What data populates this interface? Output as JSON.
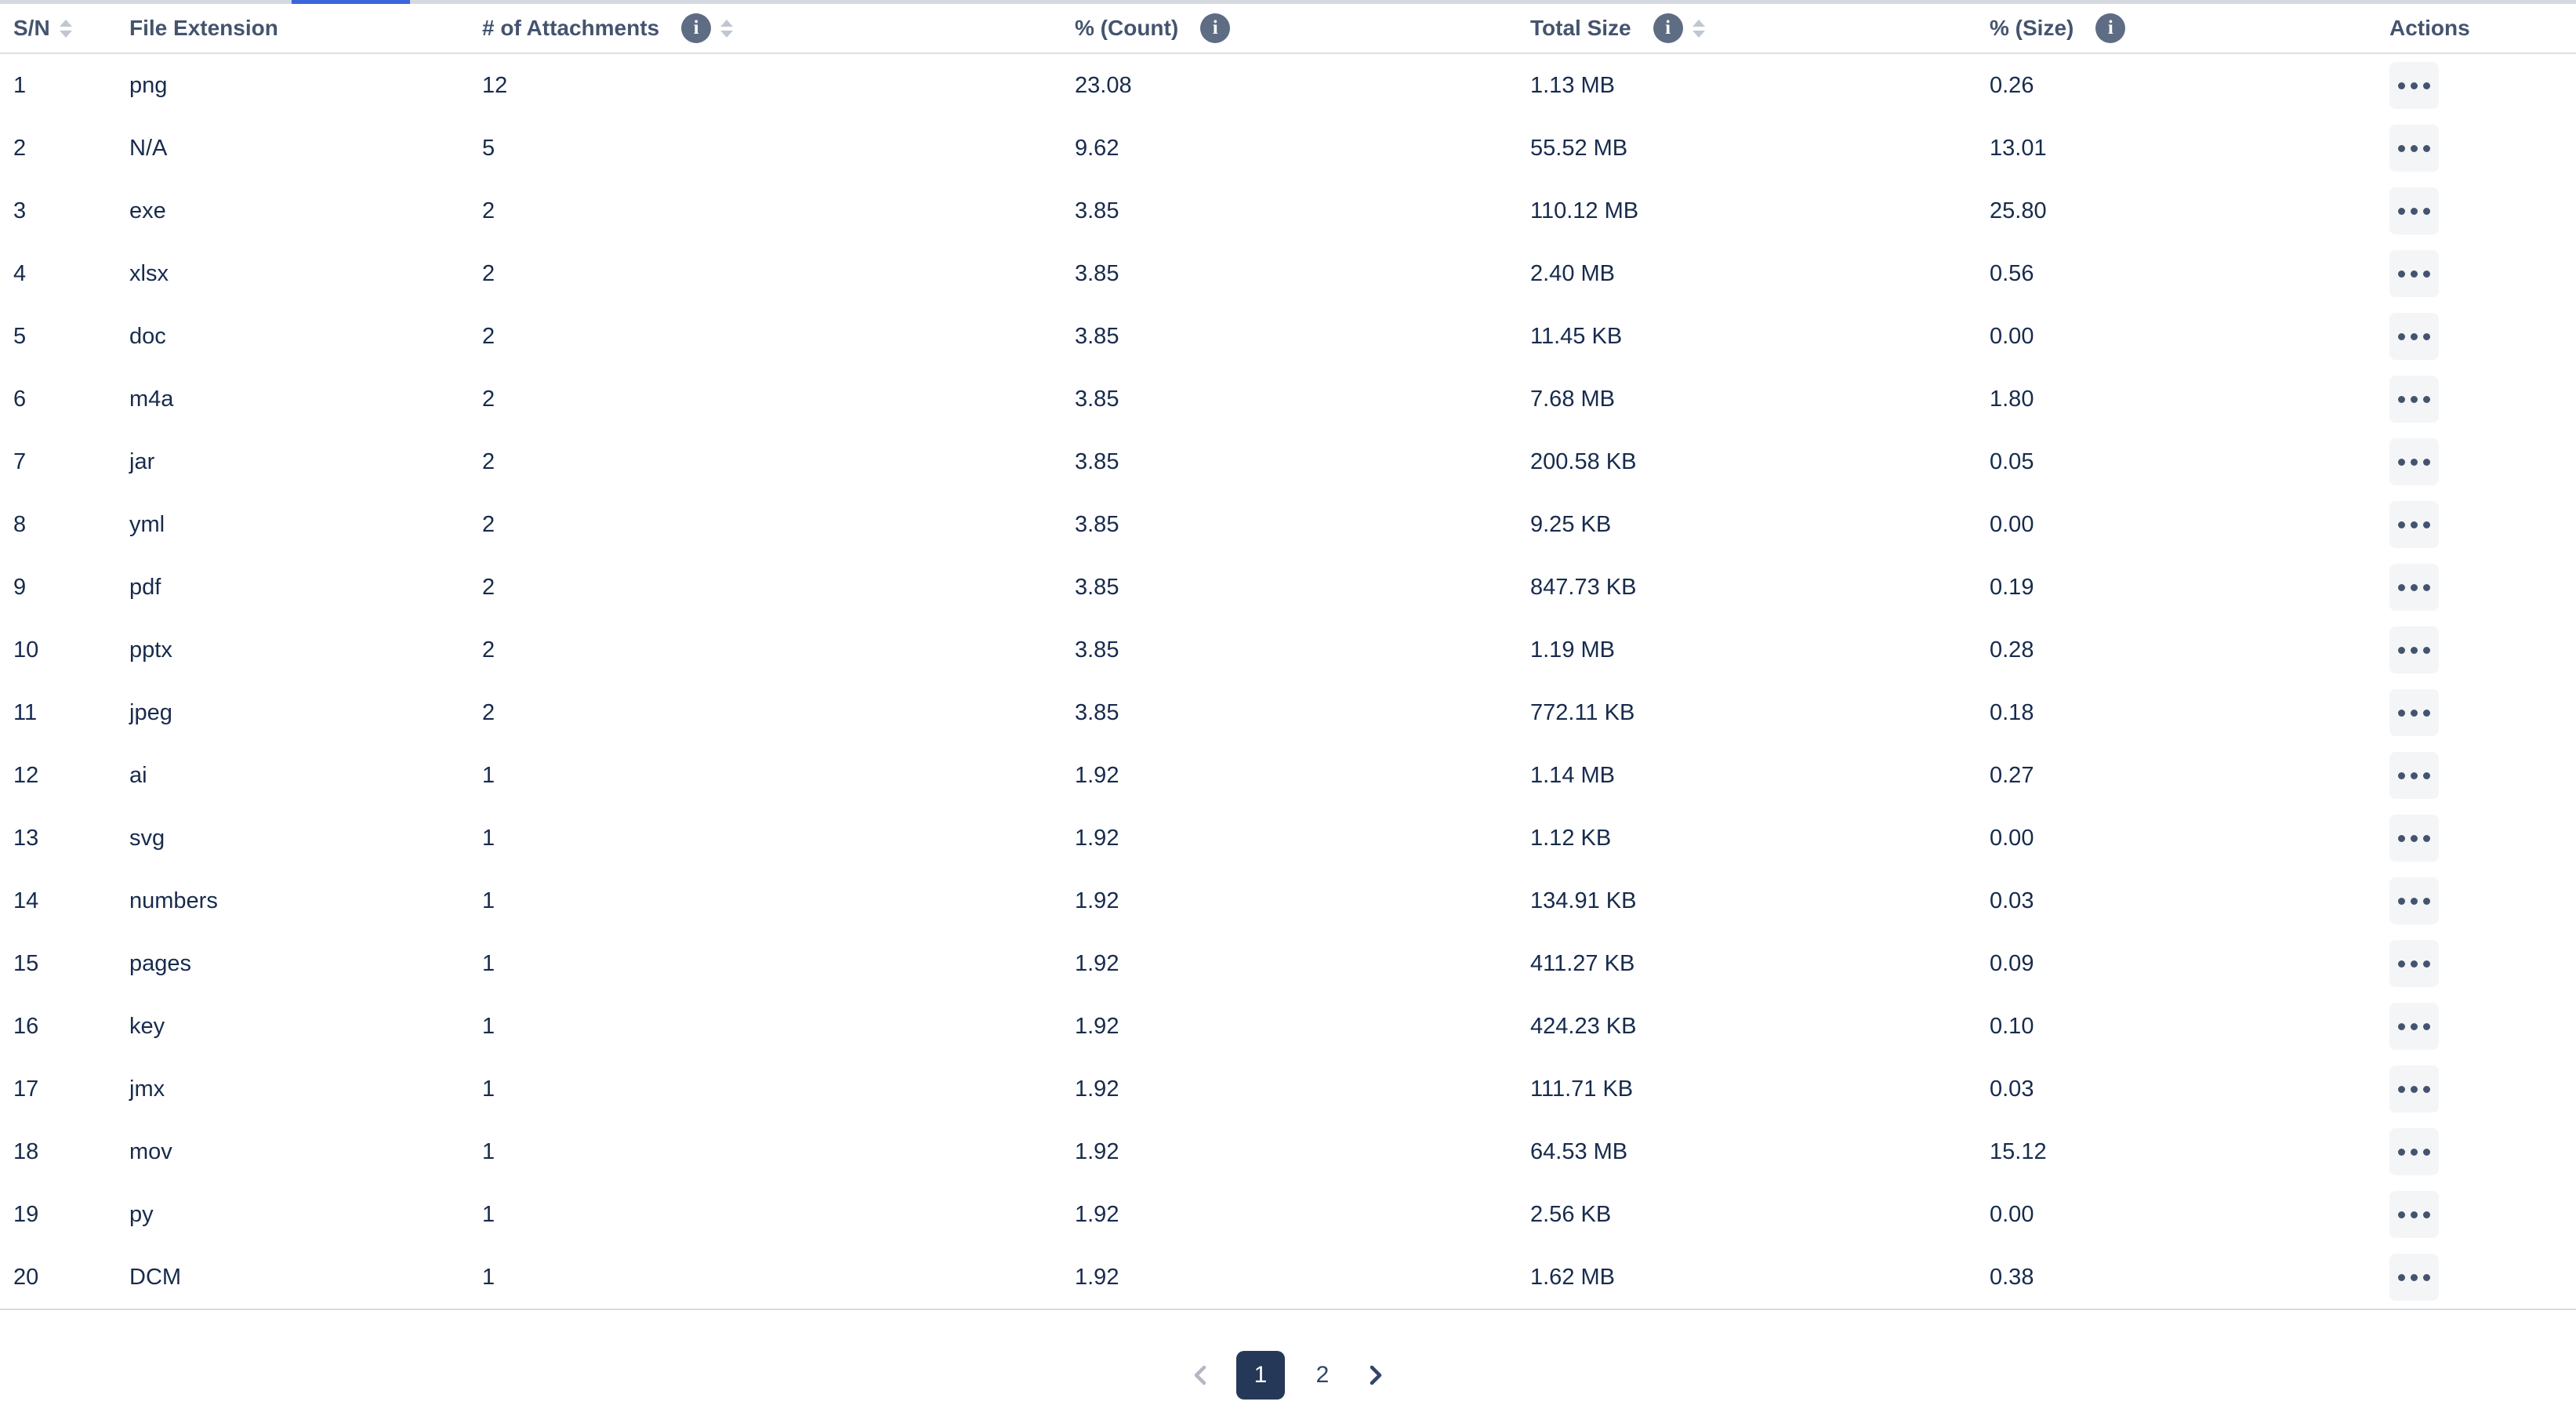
{
  "colors": {
    "active_tab_blue": "#3a66d9",
    "tab_strip_border": "#d5d9e0",
    "header_text": "#44546f",
    "body_text": "#172b4d",
    "info_icon_bg": "#5e6c84",
    "sort_arrow": "#c1c7d0",
    "action_button_bg": "#f4f5f7",
    "active_page_bg": "#253858",
    "active_page_text": "#ffffff",
    "disabled_chevron": "#b3b9c4",
    "enabled_chevron": "#344563"
  },
  "icons": {
    "info": "info-icon",
    "sort": "sort-arrows-icon",
    "row_actions": "more-options-icon",
    "prev": "chevron-left-icon",
    "next": "chevron-right-icon"
  },
  "table": {
    "columns": [
      {
        "label": "S/N",
        "field": "sn",
        "sortable": true,
        "info": false
      },
      {
        "label": "File Extension",
        "field": "ext",
        "sortable": false,
        "info": false
      },
      {
        "label": "# of Attachments",
        "field": "attachments",
        "sortable": true,
        "info": true
      },
      {
        "label": "% (Count)",
        "field": "pct_count",
        "sortable": false,
        "info": true
      },
      {
        "label": "Total Size",
        "field": "total_size",
        "sortable": true,
        "info": true
      },
      {
        "label": "% (Size)",
        "field": "pct_size",
        "sortable": false,
        "info": true
      },
      {
        "label": "Actions",
        "field": "actions",
        "sortable": false,
        "info": false
      }
    ],
    "rows": [
      {
        "sn": "1",
        "ext": "png",
        "attachments": "12",
        "pct_count": "23.08",
        "total_size": "1.13 MB",
        "pct_size": "0.26"
      },
      {
        "sn": "2",
        "ext": "N/A",
        "attachments": "5",
        "pct_count": "9.62",
        "total_size": "55.52 MB",
        "pct_size": "13.01"
      },
      {
        "sn": "3",
        "ext": "exe",
        "attachments": "2",
        "pct_count": "3.85",
        "total_size": "110.12 MB",
        "pct_size": "25.80"
      },
      {
        "sn": "4",
        "ext": "xlsx",
        "attachments": "2",
        "pct_count": "3.85",
        "total_size": "2.40 MB",
        "pct_size": "0.56"
      },
      {
        "sn": "5",
        "ext": "doc",
        "attachments": "2",
        "pct_count": "3.85",
        "total_size": "11.45 KB",
        "pct_size": "0.00"
      },
      {
        "sn": "6",
        "ext": "m4a",
        "attachments": "2",
        "pct_count": "3.85",
        "total_size": "7.68 MB",
        "pct_size": "1.80"
      },
      {
        "sn": "7",
        "ext": "jar",
        "attachments": "2",
        "pct_count": "3.85",
        "total_size": "200.58 KB",
        "pct_size": "0.05"
      },
      {
        "sn": "8",
        "ext": "yml",
        "attachments": "2",
        "pct_count": "3.85",
        "total_size": "9.25 KB",
        "pct_size": "0.00"
      },
      {
        "sn": "9",
        "ext": "pdf",
        "attachments": "2",
        "pct_count": "3.85",
        "total_size": "847.73 KB",
        "pct_size": "0.19"
      },
      {
        "sn": "10",
        "ext": "pptx",
        "attachments": "2",
        "pct_count": "3.85",
        "total_size": "1.19 MB",
        "pct_size": "0.28"
      },
      {
        "sn": "11",
        "ext": "jpeg",
        "attachments": "2",
        "pct_count": "3.85",
        "total_size": "772.11 KB",
        "pct_size": "0.18"
      },
      {
        "sn": "12",
        "ext": "ai",
        "attachments": "1",
        "pct_count": "1.92",
        "total_size": "1.14 MB",
        "pct_size": "0.27"
      },
      {
        "sn": "13",
        "ext": "svg",
        "attachments": "1",
        "pct_count": "1.92",
        "total_size": "1.12 KB",
        "pct_size": "0.00"
      },
      {
        "sn": "14",
        "ext": "numbers",
        "attachments": "1",
        "pct_count": "1.92",
        "total_size": "134.91 KB",
        "pct_size": "0.03"
      },
      {
        "sn": "15",
        "ext": "pages",
        "attachments": "1",
        "pct_count": "1.92",
        "total_size": "411.27 KB",
        "pct_size": "0.09"
      },
      {
        "sn": "16",
        "ext": "key",
        "attachments": "1",
        "pct_count": "1.92",
        "total_size": "424.23 KB",
        "pct_size": "0.10"
      },
      {
        "sn": "17",
        "ext": "jmx",
        "attachments": "1",
        "pct_count": "1.92",
        "total_size": "111.71 KB",
        "pct_size": "0.03"
      },
      {
        "sn": "18",
        "ext": "mov",
        "attachments": "1",
        "pct_count": "1.92",
        "total_size": "64.53 MB",
        "pct_size": "15.12"
      },
      {
        "sn": "19",
        "ext": "py",
        "attachments": "1",
        "pct_count": "1.92",
        "total_size": "2.56 KB",
        "pct_size": "0.00"
      },
      {
        "sn": "20",
        "ext": "DCM",
        "attachments": "1",
        "pct_count": "1.92",
        "total_size": "1.62 MB",
        "pct_size": "0.38"
      }
    ]
  },
  "pagination": {
    "pages": [
      "1",
      "2"
    ],
    "active_page": "1"
  }
}
